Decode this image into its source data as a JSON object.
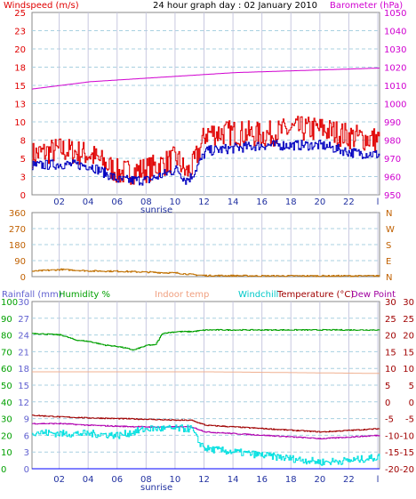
{
  "header": {
    "left_label": "Windspeed (m/s)",
    "title": "24 hour graph day : 02 January 2010",
    "right_label": "Barometer (hPa)"
  },
  "x_ticks": [
    "02",
    "04",
    "06",
    "08",
    "10",
    "12",
    "14",
    "16",
    "18",
    "20",
    "22",
    "l"
  ],
  "sunrise_label": "sunrise",
  "colors": {
    "wind": "#e00000",
    "wind_avg": "#0000c0",
    "barometer": "#d000d0",
    "wind_dir": "#c07000",
    "humidity": "#00a000",
    "indoor": "#f0b090",
    "windchill": "#00e0e0",
    "temperature": "#a00000",
    "dewpoint": "#b000b0",
    "rain": "#0000ff",
    "left_axis": "#e00000",
    "right_axis": "#d000d0",
    "axis_orange": "#c06000",
    "plot_bg": "#ffffff",
    "grid": "#a8d0e0"
  },
  "panel2": {
    "left_ticks": [
      "360",
      "270",
      "180",
      "90",
      "0"
    ],
    "right_ticks": [
      "N",
      "W",
      "S",
      "E",
      "N"
    ]
  },
  "panel3": {
    "legend": {
      "rainfall": "Rainfall (mm)",
      "humidity": "Humidity %",
      "indoor": "Indoor temp",
      "windchill": "Windchill",
      "temperature": "Temperature (°C)",
      "dewpoint": "Dew Point"
    },
    "hum_ticks": [
      "100",
      "90",
      "80",
      "70",
      "60",
      "50",
      "40",
      "30",
      "20",
      "10",
      "0"
    ],
    "rain_ticks": [
      "30",
      "27",
      "24",
      "21",
      "18",
      "15",
      "12",
      "9",
      "6",
      "3",
      "0"
    ],
    "temp_ticks": [
      "30",
      "25",
      "20",
      "15",
      "10",
      "5",
      "0",
      "-5",
      "-10",
      "-15",
      "-20"
    ]
  },
  "chart_data": [
    {
      "type": "line",
      "title": "24 hour graph day : 02 January 2010",
      "x_ticks": [
        "02",
        "04",
        "06",
        "08",
        "10",
        "12",
        "14",
        "16",
        "18",
        "20",
        "22",
        "l"
      ],
      "ylabel_left": "Windspeed (m/s)",
      "ylabel_right": "Barometer (hPa)",
      "ylim_left": [
        0,
        25
      ],
      "ylim_right": [
        950,
        1050
      ],
      "y_ticks_left": [
        "0",
        "3",
        "5",
        "8",
        "10",
        "13",
        "15",
        "18",
        "20",
        "23",
        "25"
      ],
      "y_ticks_right": [
        "950",
        "960",
        "970",
        "980",
        "990",
        "1000",
        "1010",
        "1020",
        "1030",
        "1040",
        "1050"
      ],
      "grid": true,
      "series": [
        {
          "name": "Windspeed (m/s)",
          "axis": "left",
          "x": [
            0,
            2,
            4,
            6,
            8,
            10,
            10.6,
            11,
            12,
            14,
            16,
            18,
            20,
            22,
            24
          ],
          "values": [
            5.5,
            6.2,
            5.5,
            3,
            3.5,
            5,
            3,
            3.5,
            8.5,
            8.5,
            8.2,
            9,
            9,
            8,
            7.5
          ]
        },
        {
          "axis": "left",
          "x": [
            0,
            2,
            4,
            6,
            8,
            10,
            10.6,
            11,
            12,
            14,
            16,
            18,
            20,
            22,
            24
          ],
          "values": [
            4,
            4.2,
            4,
            2,
            2,
            3.5,
            2,
            2.5,
            6,
            6.4,
            6.8,
            6.8,
            6.8,
            5.8,
            5.5
          ]
        },
        {
          "name": "Barometer (hPa)",
          "axis": "right",
          "x": [
            0,
            2,
            4,
            6,
            8,
            10,
            12,
            14,
            16,
            18,
            20,
            22,
            24
          ],
          "values": [
            1008,
            1010,
            1012,
            1013,
            1014,
            1015,
            1016,
            1017,
            1017.5,
            1018,
            1018.5,
            1019,
            1019.5
          ]
        }
      ]
    },
    {
      "type": "line",
      "ylim": [
        0,
        360
      ],
      "y_ticks_left": [
        "360",
        "270",
        "180",
        "90",
        "0"
      ],
      "y_ticks_right": [
        "N",
        "W",
        "S",
        "E",
        "N"
      ],
      "series": [
        {
          "x": [
            0,
            2,
            4,
            6,
            8,
            10,
            11,
            12,
            16,
            20,
            24
          ],
          "values": [
            30,
            40,
            32,
            30,
            25,
            20,
            12,
            6,
            4,
            4,
            4
          ]
        }
      ]
    },
    {
      "type": "line",
      "legend": [
        "Rainfall (mm)",
        "Humidity %",
        "Indoor temp",
        "Windchill",
        "Temperature (°C)",
        "Dew Point"
      ],
      "ylim_humidity": [
        0,
        100
      ],
      "ylim_rain": [
        0,
        30
      ],
      "ylim_temp": [
        -20,
        30
      ],
      "series": [
        {
          "name": "Humidity %",
          "axis": "humidity",
          "x": [
            0,
            2,
            3,
            4,
            5,
            6,
            7,
            8,
            8.5,
            9,
            10,
            11,
            12,
            24
          ],
          "values": [
            81,
            80,
            77,
            76,
            74,
            73,
            71,
            74,
            74,
            81,
            82,
            82,
            83,
            83
          ]
        },
        {
          "name": "Indoor temp",
          "axis": "temp",
          "x": [
            0,
            12,
            24
          ],
          "values": [
            9,
            9,
            8.5
          ]
        },
        {
          "name": "Temperature (°C)",
          "axis": "temp",
          "x": [
            0,
            2,
            4,
            6,
            8,
            10,
            11,
            12,
            14,
            16,
            18,
            20,
            22,
            24
          ],
          "values": [
            -4,
            -4.5,
            -4.8,
            -5,
            -5.2,
            -5.5,
            -5.5,
            -7,
            -7.5,
            -8,
            -8.5,
            -9,
            -8.5,
            -8
          ]
        },
        {
          "name": "Dew Point",
          "axis": "temp",
          "x": [
            0,
            2,
            4,
            6,
            8,
            10,
            11,
            12,
            14,
            16,
            18,
            20,
            22,
            24
          ],
          "values": [
            -6.5,
            -6.5,
            -7,
            -7.3,
            -7.5,
            -7.5,
            -7.5,
            -9,
            -9.5,
            -10,
            -10.5,
            -11,
            -10.5,
            -10
          ]
        },
        {
          "name": "Windchill",
          "axis": "temp",
          "x": [
            0,
            2,
            4,
            6,
            8,
            10,
            11,
            11.5,
            12,
            14,
            16,
            18,
            20,
            22,
            24
          ],
          "values": [
            -9,
            -9.5,
            -9.5,
            -10,
            -8,
            -8,
            -8,
            -12,
            -14,
            -15,
            -16,
            -17,
            -18,
            -17.5,
            -16.5
          ]
        },
        {
          "name": "Rainfall (mm)",
          "axis": "rain",
          "x": [
            0,
            24
          ],
          "values": [
            0,
            0
          ]
        }
      ]
    }
  ]
}
